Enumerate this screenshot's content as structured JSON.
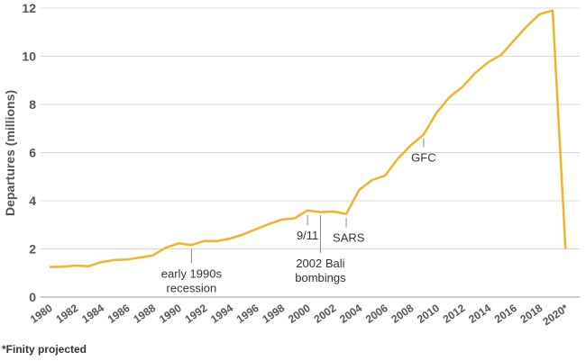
{
  "chart_data": {
    "type": "line",
    "ylabel": "Departures (millions)",
    "ylim": [
      0,
      12
    ],
    "yticks": [
      0,
      2,
      4,
      6,
      8,
      10,
      12
    ],
    "grid": true,
    "x_tick_labels": [
      "1980",
      "1982",
      "1984",
      "1986",
      "1988",
      "1990",
      "1992",
      "1994",
      "1996",
      "1998",
      "2000",
      "2002",
      "2004",
      "2006",
      "2008",
      "2010",
      "2012",
      "2014",
      "2016",
      "2018",
      "2020*"
    ],
    "color": "#f0b429",
    "x": [
      1980,
      1981,
      1982,
      1983,
      1984,
      1985,
      1986,
      1987,
      1988,
      1989,
      1990,
      1991,
      1992,
      1993,
      1994,
      1995,
      1996,
      1997,
      1998,
      1999,
      2000,
      2001,
      2002,
      2003,
      2004,
      2005,
      2006,
      2007,
      2008,
      2009,
      2010,
      2011,
      2012,
      2013,
      2014,
      2015,
      2016,
      2017,
      2018,
      2019,
      2020
    ],
    "y": [
      1.25,
      1.26,
      1.31,
      1.28,
      1.45,
      1.54,
      1.56,
      1.64,
      1.73,
      2.05,
      2.23,
      2.16,
      2.33,
      2.33,
      2.43,
      2.6,
      2.82,
      3.03,
      3.22,
      3.27,
      3.6,
      3.53,
      3.55,
      3.45,
      4.45,
      4.86,
      5.04,
      5.75,
      6.3,
      6.75,
      7.65,
      8.3,
      8.72,
      9.3,
      9.75,
      10.05,
      10.65,
      11.25,
      11.75,
      11.9,
      2.0
    ],
    "annotations": [
      {
        "x": 1991,
        "y": 2.16,
        "lines": [
          "early 1990s",
          "recession"
        ]
      },
      {
        "x": 2000,
        "y": 3.55,
        "lines": [
          "9/11"
        ]
      },
      {
        "x": 2001,
        "y": 3.53,
        "lines": [
          "2002 Bali",
          "bombings"
        ]
      },
      {
        "x": 2003,
        "y": 3.45,
        "lines": [
          "SARS"
        ]
      },
      {
        "x": 2009,
        "y": 6.75,
        "lines": [
          "GFC"
        ]
      }
    ]
  },
  "footnote": "*Finity projected"
}
